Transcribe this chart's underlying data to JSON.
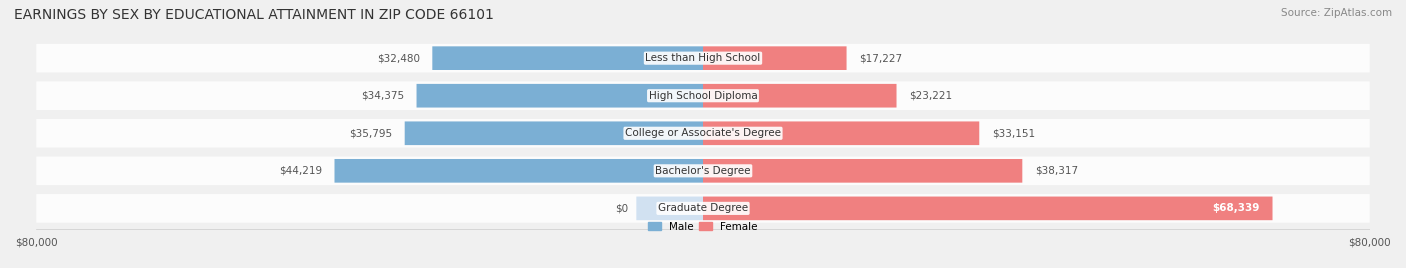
{
  "title": "EARNINGS BY SEX BY EDUCATIONAL ATTAINMENT IN ZIP CODE 66101",
  "source": "Source: ZipAtlas.com",
  "categories": [
    "Less than High School",
    "High School Diploma",
    "College or Associate's Degree",
    "Bachelor's Degree",
    "Graduate Degree"
  ],
  "male_values": [
    32480,
    34375,
    35795,
    44219,
    0
  ],
  "female_values": [
    17227,
    23221,
    33151,
    38317,
    68339
  ],
  "male_labels": [
    "$32,480",
    "$34,375",
    "$35,795",
    "$44,219",
    "$0"
  ],
  "female_labels": [
    "$17,227",
    "$23,221",
    "$33,151",
    "$38,317",
    "$68,339"
  ],
  "male_color": "#7bafd4",
  "female_color": "#f08080",
  "male_color_light": "#a8c8e8",
  "female_color_light": "#f4a0b0",
  "max_value": 80000,
  "x_axis_label_left": "$80,000",
  "x_axis_label_right": "$80,000",
  "background_color": "#f0f0f0",
  "bar_bg_color": "#e8e8e8",
  "title_fontsize": 10,
  "source_fontsize": 7.5,
  "label_fontsize": 7.5,
  "tick_fontsize": 7.5
}
